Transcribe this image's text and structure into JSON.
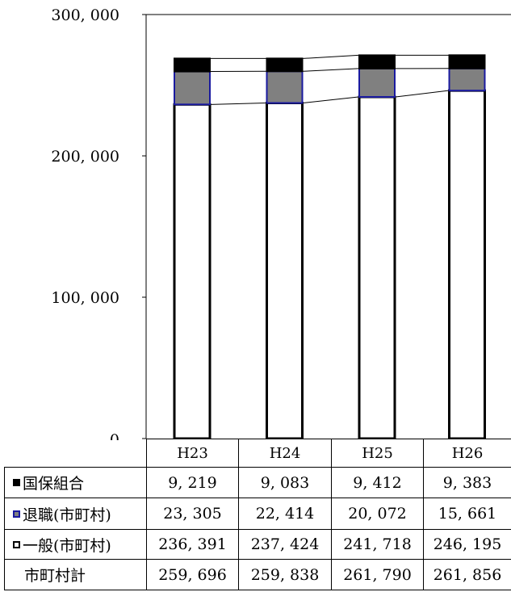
{
  "chart_data": {
    "type": "bar",
    "stacked": true,
    "categories": [
      "H23",
      "H24",
      "H25",
      "H26"
    ],
    "ylim": [
      0,
      300000
    ],
    "yticks": [
      0,
      100000,
      200000,
      300000
    ],
    "ytick_labels": [
      "0",
      "100, 000",
      "200, 000",
      "300, 000"
    ],
    "series": [
      {
        "name": "一般(市町村)",
        "values": [
          236391,
          237424,
          241718,
          246195
        ],
        "color": "#ffffff",
        "edge": "#000000"
      },
      {
        "name": "退職(市町村)",
        "values": [
          23305,
          22414,
          20072,
          15661
        ],
        "color": "#808080",
        "edge": "#1a1aa0"
      },
      {
        "name": "国保組合",
        "values": [
          9219,
          9083,
          9412,
          9383
        ],
        "color": "#000000",
        "edge": "#000000"
      }
    ],
    "table": {
      "header": [
        "H23",
        "H24",
        "H25",
        "H26"
      ],
      "rows": [
        {
          "label": "国保組合",
          "swatch": "black",
          "cells": [
            "9, 219",
            "9, 083",
            "9, 412",
            "9, 383"
          ]
        },
        {
          "label": "退職(市町村)",
          "swatch": "gray",
          "cells": [
            "23, 305",
            "22, 414",
            "20, 072",
            "15, 661"
          ]
        },
        {
          "label": "一般(市町村)",
          "swatch": "white",
          "cells": [
            "236, 391",
            "237, 424",
            "241, 718",
            "246, 195"
          ]
        },
        {
          "label": "市町村計",
          "swatch": "",
          "cells": [
            "259, 696",
            "259, 838",
            "261, 790",
            "261, 856"
          ]
        }
      ]
    }
  }
}
